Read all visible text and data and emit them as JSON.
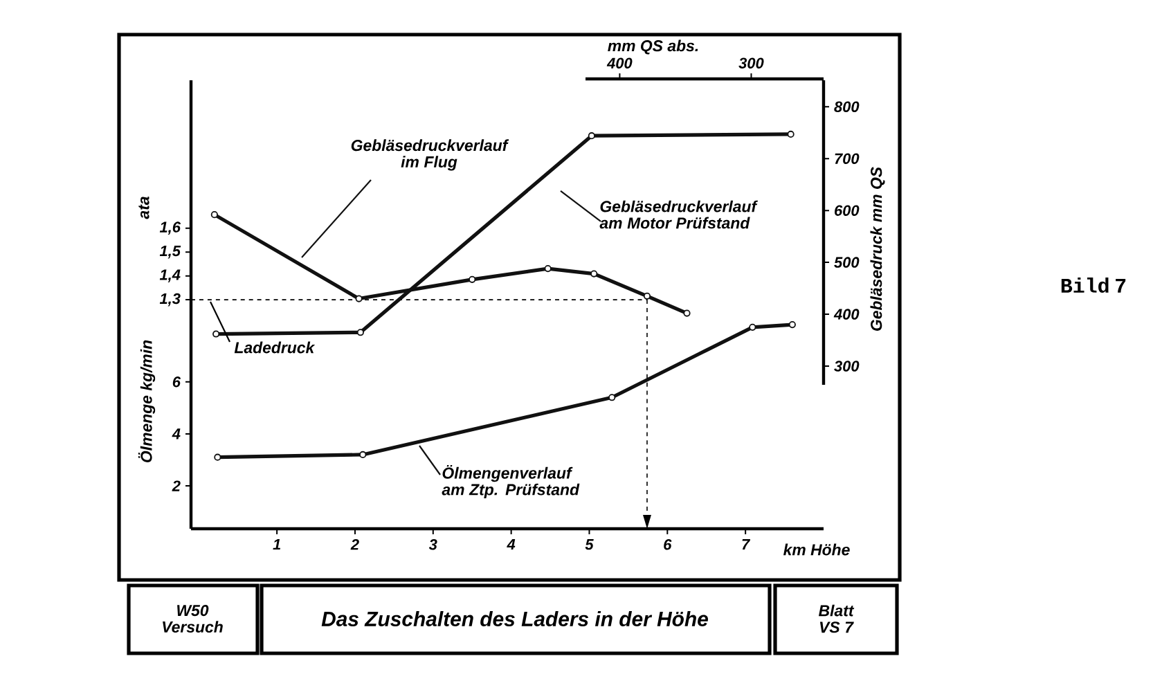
{
  "chart_data": {
    "type": "line",
    "title": "Das Zuschalten des Laders in der Höhe",
    "xlabel": "km Höhe",
    "ylabel": "Ölmenge kg/min",
    "y2label": "Gebläsedruck mm QS",
    "y3label": "ata",
    "x2label": "mm QS abs.",
    "xlim": [
      -0.1,
      8.0
    ],
    "xticks": [
      1,
      2,
      3,
      4,
      5,
      6,
      7
    ],
    "ylim": [
      0.35,
      17.6
    ],
    "yticks": [
      2,
      4,
      6
    ],
    "y2lim": [
      264,
      851
    ],
    "y2ticks": [
      300,
      400,
      500,
      600,
      700,
      800
    ],
    "y3lim": [
      0.34,
      2.22
    ],
    "y3ticks": [
      {
        "value": 1.3,
        "label": "1,3"
      },
      {
        "value": 1.4,
        "label": "1,4"
      },
      {
        "value": 1.5,
        "label": "1,5"
      },
      {
        "value": 1.6,
        "label": "1,6"
      }
    ],
    "x2lim": [
      426,
      245
    ],
    "x2ticks": [
      400,
      300
    ],
    "marker": "circle",
    "series": [
      {
        "name": "Gebläsedruckverlauf im Flug",
        "color": "#111111",
        "axis": "y2",
        "x": [
          0.2,
          2.05,
          3.5,
          4.47,
          5.06,
          5.74,
          6.25
        ],
        "values": [
          592,
          430,
          467,
          488,
          478,
          435,
          402
        ]
      },
      {
        "name": "Gebläsedruckverlauf am Motor Prüfstand",
        "color": "#111111",
        "axis": "y2",
        "x": [
          0.22,
          2.07,
          5.03,
          7.58
        ],
        "values": [
          362,
          365,
          744,
          747
        ]
      },
      {
        "name": "Ölmengenverlauf am Ztp. Prüfstand",
        "color": "#111111",
        "x": [
          0.24,
          2.1,
          5.29,
          7.09,
          7.6
        ],
        "values": [
          3.1,
          3.2,
          5.4,
          8.1,
          8.2
        ]
      }
    ],
    "ref_lines": [
      {
        "axis": "y3",
        "value": 1.3,
        "label": "Ladedruck",
        "line_style": "dashed"
      },
      {
        "axis": "x",
        "value": 5.74,
        "line_style": "dashed"
      }
    ],
    "annotations": [
      "W50 Versuch",
      "Blatt VS 7",
      "Bild 7"
    ]
  }
}
